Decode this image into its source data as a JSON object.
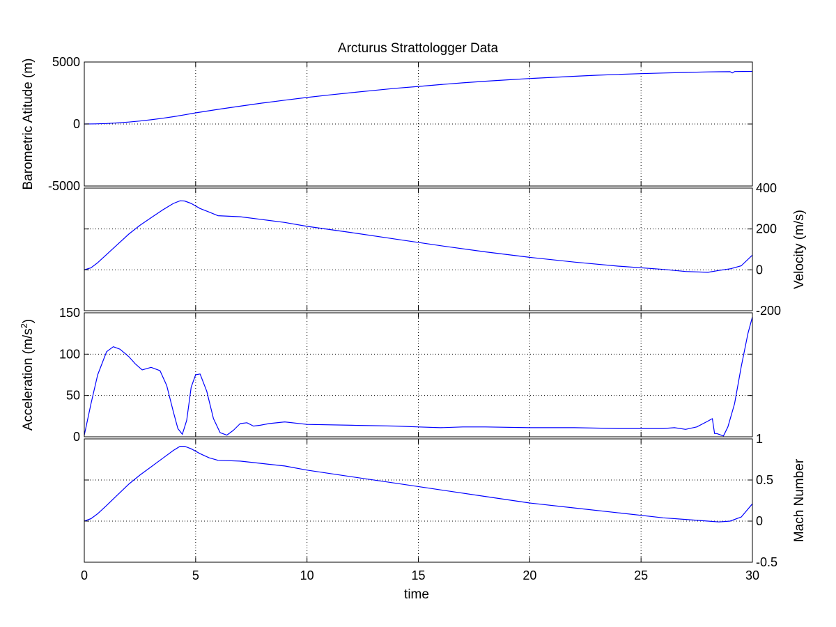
{
  "chart_data": [
    {
      "type": "line",
      "title": "Arcturus Strattologger Data",
      "ylabel": "Barometric Atitude (m)",
      "yaxis_side": "left",
      "ylim": [
        -5000,
        5000
      ],
      "yticks": [
        -5000,
        0,
        5000
      ],
      "ytick_labels": [
        "-5000",
        "0",
        "5000"
      ],
      "xlim": [
        0,
        30
      ],
      "grid": true,
      "color": "#0000ff",
      "series": [
        {
          "x": [
            0,
            0.5,
            1,
            1.5,
            2,
            2.5,
            3,
            3.5,
            4,
            4.5,
            5,
            5.5,
            6,
            7,
            8,
            9,
            10,
            11,
            12,
            13,
            14,
            15,
            16,
            17,
            18,
            19,
            20,
            21,
            22,
            23,
            24,
            25,
            26,
            27,
            28,
            28.5,
            29,
            29.1,
            29.2,
            30
          ],
          "y": [
            0,
            10,
            40,
            90,
            160,
            240,
            340,
            460,
            590,
            740,
            900,
            1040,
            1180,
            1440,
            1690,
            1920,
            2140,
            2340,
            2530,
            2710,
            2880,
            3030,
            3180,
            3320,
            3450,
            3560,
            3670,
            3760,
            3850,
            3930,
            4000,
            4060,
            4110,
            4160,
            4200,
            4215,
            4220,
            4120,
            4230,
            4240
          ]
        }
      ]
    },
    {
      "type": "line",
      "ylabel": "Velocity (m/s)",
      "yaxis_side": "right",
      "ylim": [
        -200,
        400
      ],
      "yticks": [
        -200,
        0,
        200,
        400
      ],
      "ytick_labels": [
        "-200",
        "0",
        "200",
        "400"
      ],
      "xlim": [
        0,
        30
      ],
      "grid": true,
      "color": "#0000ff",
      "series": [
        {
          "x": [
            0,
            0.3,
            0.6,
            1,
            1.5,
            2,
            2.5,
            3,
            3.5,
            4,
            4.3,
            4.5,
            4.8,
            5.2,
            5.6,
            6,
            7,
            8,
            9,
            10,
            12,
            14,
            16,
            18,
            20,
            22,
            24,
            26,
            27,
            28,
            28.5,
            29,
            29.5,
            30
          ],
          "y": [
            0,
            10,
            35,
            75,
            125,
            175,
            218,
            255,
            292,
            325,
            338,
            337,
            325,
            300,
            283,
            265,
            260,
            246,
            232,
            213,
            182,
            150,
            118,
            88,
            61,
            38,
            18,
            2,
            -8,
            -12,
            -3,
            5,
            20,
            72
          ]
        }
      ]
    },
    {
      "type": "line",
      "ylabel": "Acceleration (m/s2)",
      "yaxis_side": "left",
      "ylim": [
        0,
        150
      ],
      "yticks": [
        0,
        50,
        100,
        150
      ],
      "ytick_labels": [
        "0",
        "50",
        "100",
        "150"
      ],
      "xlim": [
        0,
        30
      ],
      "grid": true,
      "color": "#0000ff",
      "series": [
        {
          "x": [
            0,
            0.3,
            0.6,
            1,
            1.3,
            1.6,
            2,
            2.3,
            2.6,
            3,
            3.4,
            3.7,
            4,
            4.2,
            4.4,
            4.6,
            4.8,
            5,
            5.2,
            5.5,
            5.8,
            6.1,
            6.4,
            6.7,
            7,
            7.3,
            7.6,
            7.9,
            8.3,
            9,
            10,
            12,
            14,
            15,
            16,
            17,
            18,
            20,
            22,
            24,
            26,
            26.5,
            27,
            27.5,
            28,
            28.2,
            28.3,
            28.4,
            28.5,
            28.7,
            28.9,
            29.2,
            29.5,
            29.8,
            30
          ],
          "y": [
            2,
            40,
            75,
            103,
            109,
            106,
            97,
            88,
            81,
            84,
            80,
            62,
            30,
            10,
            3,
            20,
            60,
            75,
            76,
            55,
            22,
            5,
            2,
            8,
            16,
            17,
            13,
            14,
            16,
            18,
            15,
            14,
            13,
            12,
            11,
            12,
            12,
            11,
            11,
            10,
            10,
            11,
            9,
            12,
            19,
            22,
            4,
            4,
            3,
            1,
            12,
            40,
            85,
            125,
            145
          ]
        }
      ]
    },
    {
      "type": "line",
      "ylabel": "Mach Number",
      "xlabel": "time",
      "yaxis_side": "right",
      "ylim": [
        -0.5,
        1
      ],
      "yticks": [
        -0.5,
        0,
        0.5,
        1
      ],
      "ytick_labels": [
        "-0.5",
        "0",
        "0.5",
        "1"
      ],
      "xlim": [
        0,
        30
      ],
      "xticks": [
        0,
        5,
        10,
        15,
        20,
        25,
        30
      ],
      "xtick_labels": [
        "0",
        "5",
        "10",
        "15",
        "20",
        "25",
        "30"
      ],
      "grid": true,
      "color": "#0000ff",
      "series": [
        {
          "x": [
            0,
            0.3,
            0.6,
            1,
            1.5,
            2,
            2.5,
            3,
            3.5,
            4,
            4.3,
            4.5,
            4.8,
            5.2,
            5.6,
            6,
            7,
            8,
            9,
            10,
            12,
            14,
            16,
            18,
            20,
            22,
            24,
            26,
            27,
            28,
            28.5,
            29,
            29.5,
            30
          ],
          "y": [
            0,
            0.03,
            0.09,
            0.19,
            0.32,
            0.45,
            0.56,
            0.66,
            0.76,
            0.86,
            0.91,
            0.91,
            0.88,
            0.82,
            0.77,
            0.74,
            0.73,
            0.7,
            0.67,
            0.62,
            0.54,
            0.46,
            0.38,
            0.3,
            0.22,
            0.16,
            0.1,
            0.04,
            0.02,
            0.0,
            -0.01,
            0.0,
            0.05,
            0.21
          ]
        }
      ]
    }
  ]
}
